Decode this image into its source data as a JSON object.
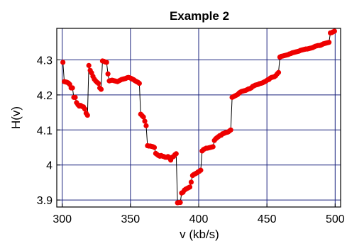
{
  "chart_data": {
    "type": "line",
    "title": "Example 2",
    "xlabel": "v (kb/s)",
    "ylabel": "H(v)",
    "xlim": [
      296,
      504
    ],
    "ylim": [
      3.88,
      4.39
    ],
    "x_ticks": [
      300,
      350,
      400,
      450,
      500
    ],
    "y_ticks": [
      3.9,
      4.0,
      4.1,
      4.2,
      4.3
    ],
    "x_tick_labels": [
      "300",
      "350",
      "400",
      "450",
      "500"
    ],
    "y_tick_labels": [
      "3.9",
      "4",
      "4.1",
      "4.2",
      "4.3"
    ],
    "grid": true,
    "colors": {
      "line": "#000000",
      "marker": "#ee0000",
      "grid": "#1a237e"
    },
    "series": [
      {
        "points": [
          [
            300.5,
            4.293
          ],
          [
            301.5,
            4.238
          ],
          [
            302.5,
            4.237
          ],
          [
            303.5,
            4.236
          ],
          [
            304.5,
            4.234
          ],
          [
            305.5,
            4.23
          ],
          [
            306.5,
            4.22
          ],
          [
            307.5,
            4.22
          ],
          [
            308.5,
            4.193
          ],
          [
            309.5,
            4.193
          ],
          [
            310.5,
            4.178
          ],
          [
            311.5,
            4.172
          ],
          [
            312.5,
            4.168
          ],
          [
            313.5,
            4.17
          ],
          [
            314.5,
            4.167
          ],
          [
            315.5,
            4.166
          ],
          [
            316.5,
            4.16
          ],
          [
            317.5,
            4.148
          ],
          [
            318.5,
            4.142
          ],
          [
            319.5,
            4.284
          ],
          [
            320.5,
            4.27
          ],
          [
            321.5,
            4.263
          ],
          [
            322.5,
            4.253
          ],
          [
            323.5,
            4.245
          ],
          [
            324.5,
            4.24
          ],
          [
            325.5,
            4.236
          ],
          [
            326.5,
            4.233
          ],
          [
            327.5,
            4.22
          ],
          [
            328.5,
            4.216
          ],
          [
            329.5,
            4.297
          ],
          [
            330.5,
            4.296
          ],
          [
            331.5,
            4.294
          ],
          [
            332.5,
            4.293
          ],
          [
            333.5,
            4.26
          ],
          [
            334.5,
            4.24
          ],
          [
            335.5,
            4.241
          ],
          [
            336.5,
            4.242
          ],
          [
            337.5,
            4.241
          ],
          [
            338.5,
            4.24
          ],
          [
            339.5,
            4.239
          ],
          [
            340.5,
            4.238
          ],
          [
            341.5,
            4.24
          ],
          [
            342.5,
            4.242
          ],
          [
            343.5,
            4.244
          ],
          [
            344.5,
            4.245
          ],
          [
            345.5,
            4.246
          ],
          [
            346.5,
            4.247
          ],
          [
            347.5,
            4.249
          ],
          [
            348.5,
            4.25
          ],
          [
            349.5,
            4.249
          ],
          [
            350.5,
            4.247
          ],
          [
            351.5,
            4.245
          ],
          [
            352.5,
            4.243
          ],
          [
            353.5,
            4.24
          ],
          [
            354.5,
            4.238
          ],
          [
            355.5,
            4.236
          ],
          [
            356.5,
            4.233
          ],
          [
            357.5,
            4.145
          ],
          [
            358.5,
            4.141
          ],
          [
            359.5,
            4.137
          ],
          [
            360.5,
            4.125
          ],
          [
            361.5,
            4.112
          ],
          [
            362.5,
            4.055
          ],
          [
            363.5,
            4.054
          ],
          [
            364.5,
            4.054
          ],
          [
            365.5,
            4.053
          ],
          [
            366.5,
            4.052
          ],
          [
            367.5,
            4.05
          ],
          [
            368.5,
            4.033
          ],
          [
            369.5,
            4.03
          ],
          [
            370.5,
            4.027
          ],
          [
            371.5,
            4.025
          ],
          [
            372.5,
            4.027
          ],
          [
            373.5,
            4.025
          ],
          [
            374.5,
            4.024
          ],
          [
            375.5,
            4.022
          ],
          [
            376.5,
            4.022
          ],
          [
            377.5,
            4.024
          ],
          [
            378.5,
            4.02
          ],
          [
            379.5,
            4.014
          ],
          [
            380.5,
            4.022
          ],
          [
            381.5,
            4.024
          ],
          [
            382.5,
            4.029
          ],
          [
            383.5,
            4.032
          ],
          [
            384.5,
            3.892
          ],
          [
            385.5,
            3.893
          ],
          [
            386.5,
            3.893
          ],
          [
            387.5,
            3.92
          ],
          [
            388.5,
            3.922
          ],
          [
            389.5,
            3.928
          ],
          [
            390.5,
            3.931
          ],
          [
            391.5,
            3.933
          ],
          [
            392.5,
            3.935
          ],
          [
            393.5,
            3.937
          ],
          [
            394.5,
            3.951
          ],
          [
            395.5,
            3.97
          ],
          [
            396.5,
            3.973
          ],
          [
            397.5,
            3.975
          ],
          [
            398.5,
            3.977
          ],
          [
            399.5,
            3.98
          ],
          [
            400.5,
            3.982
          ],
          [
            401.5,
            3.985
          ],
          [
            402.5,
            4.04
          ],
          [
            403.5,
            4.044
          ],
          [
            404.5,
            4.046
          ],
          [
            405.5,
            4.048
          ],
          [
            406.5,
            4.048
          ],
          [
            407.5,
            4.049
          ],
          [
            408.5,
            4.05
          ],
          [
            409.5,
            4.051
          ],
          [
            410.5,
            4.052
          ],
          [
            411.5,
            4.07
          ],
          [
            412.5,
            4.075
          ],
          [
            413.5,
            4.078
          ],
          [
            414.5,
            4.081
          ],
          [
            415.5,
            4.084
          ],
          [
            416.5,
            4.085
          ],
          [
            417.5,
            4.089
          ],
          [
            418.5,
            4.09
          ],
          [
            419.5,
            4.092
          ],
          [
            420.5,
            4.093
          ],
          [
            421.5,
            4.094
          ],
          [
            422.5,
            4.097
          ],
          [
            423.5,
            4.1
          ],
          [
            424.5,
            4.193
          ],
          [
            425.5,
            4.195
          ],
          [
            426.5,
            4.197
          ],
          [
            427.5,
            4.199
          ],
          [
            428.5,
            4.201
          ],
          [
            429.5,
            4.205
          ],
          [
            430.5,
            4.208
          ],
          [
            431.5,
            4.21
          ],
          [
            432.5,
            4.211
          ],
          [
            433.5,
            4.212
          ],
          [
            434.5,
            4.213
          ],
          [
            435.5,
            4.215
          ],
          [
            436.5,
            4.217
          ],
          [
            437.5,
            4.218
          ],
          [
            438.5,
            4.22
          ],
          [
            439.5,
            4.224
          ],
          [
            440.5,
            4.226
          ],
          [
            441.5,
            4.228
          ],
          [
            442.5,
            4.229
          ],
          [
            443.5,
            4.23
          ],
          [
            444.5,
            4.232
          ],
          [
            445.5,
            4.233
          ],
          [
            446.5,
            4.234
          ],
          [
            447.5,
            4.236
          ],
          [
            448.5,
            4.238
          ],
          [
            449.5,
            4.24
          ],
          [
            450.5,
            4.243
          ],
          [
            451.5,
            4.244
          ],
          [
            452.5,
            4.248
          ],
          [
            453.5,
            4.25
          ],
          [
            454.5,
            4.251
          ],
          [
            455.5,
            4.252
          ],
          [
            456.5,
            4.255
          ],
          [
            457.5,
            4.26
          ],
          [
            458.5,
            4.264
          ],
          [
            459.5,
            4.308
          ],
          [
            460.5,
            4.31
          ],
          [
            461.5,
            4.311
          ],
          [
            462.5,
            4.312
          ],
          [
            463.5,
            4.313
          ],
          [
            464.5,
            4.314
          ],
          [
            465.5,
            4.315
          ],
          [
            466.5,
            4.317
          ],
          [
            467.5,
            4.318
          ],
          [
            468.5,
            4.32
          ],
          [
            469.5,
            4.321
          ],
          [
            470.5,
            4.322
          ],
          [
            471.5,
            4.323
          ],
          [
            472.5,
            4.324
          ],
          [
            473.5,
            4.325
          ],
          [
            474.5,
            4.327
          ],
          [
            475.5,
            4.328
          ],
          [
            476.5,
            4.329
          ],
          [
            477.5,
            4.33
          ],
          [
            478.5,
            4.331
          ],
          [
            479.5,
            4.331
          ],
          [
            480.5,
            4.332
          ],
          [
            481.5,
            4.333
          ],
          [
            482.5,
            4.334
          ],
          [
            483.5,
            4.335
          ],
          [
            484.5,
            4.337
          ],
          [
            485.5,
            4.339
          ],
          [
            486.5,
            4.34
          ],
          [
            487.5,
            4.341
          ],
          [
            488.5,
            4.341
          ],
          [
            489.5,
            4.342
          ],
          [
            490.5,
            4.344
          ],
          [
            491.5,
            4.346
          ],
          [
            492.5,
            4.347
          ],
          [
            493.5,
            4.348
          ],
          [
            494.5,
            4.349
          ],
          [
            495.5,
            4.35
          ],
          [
            496.5,
            4.377
          ],
          [
            497.5,
            4.378
          ],
          [
            498.5,
            4.38
          ],
          [
            499.5,
            4.382
          ]
        ]
      }
    ]
  }
}
